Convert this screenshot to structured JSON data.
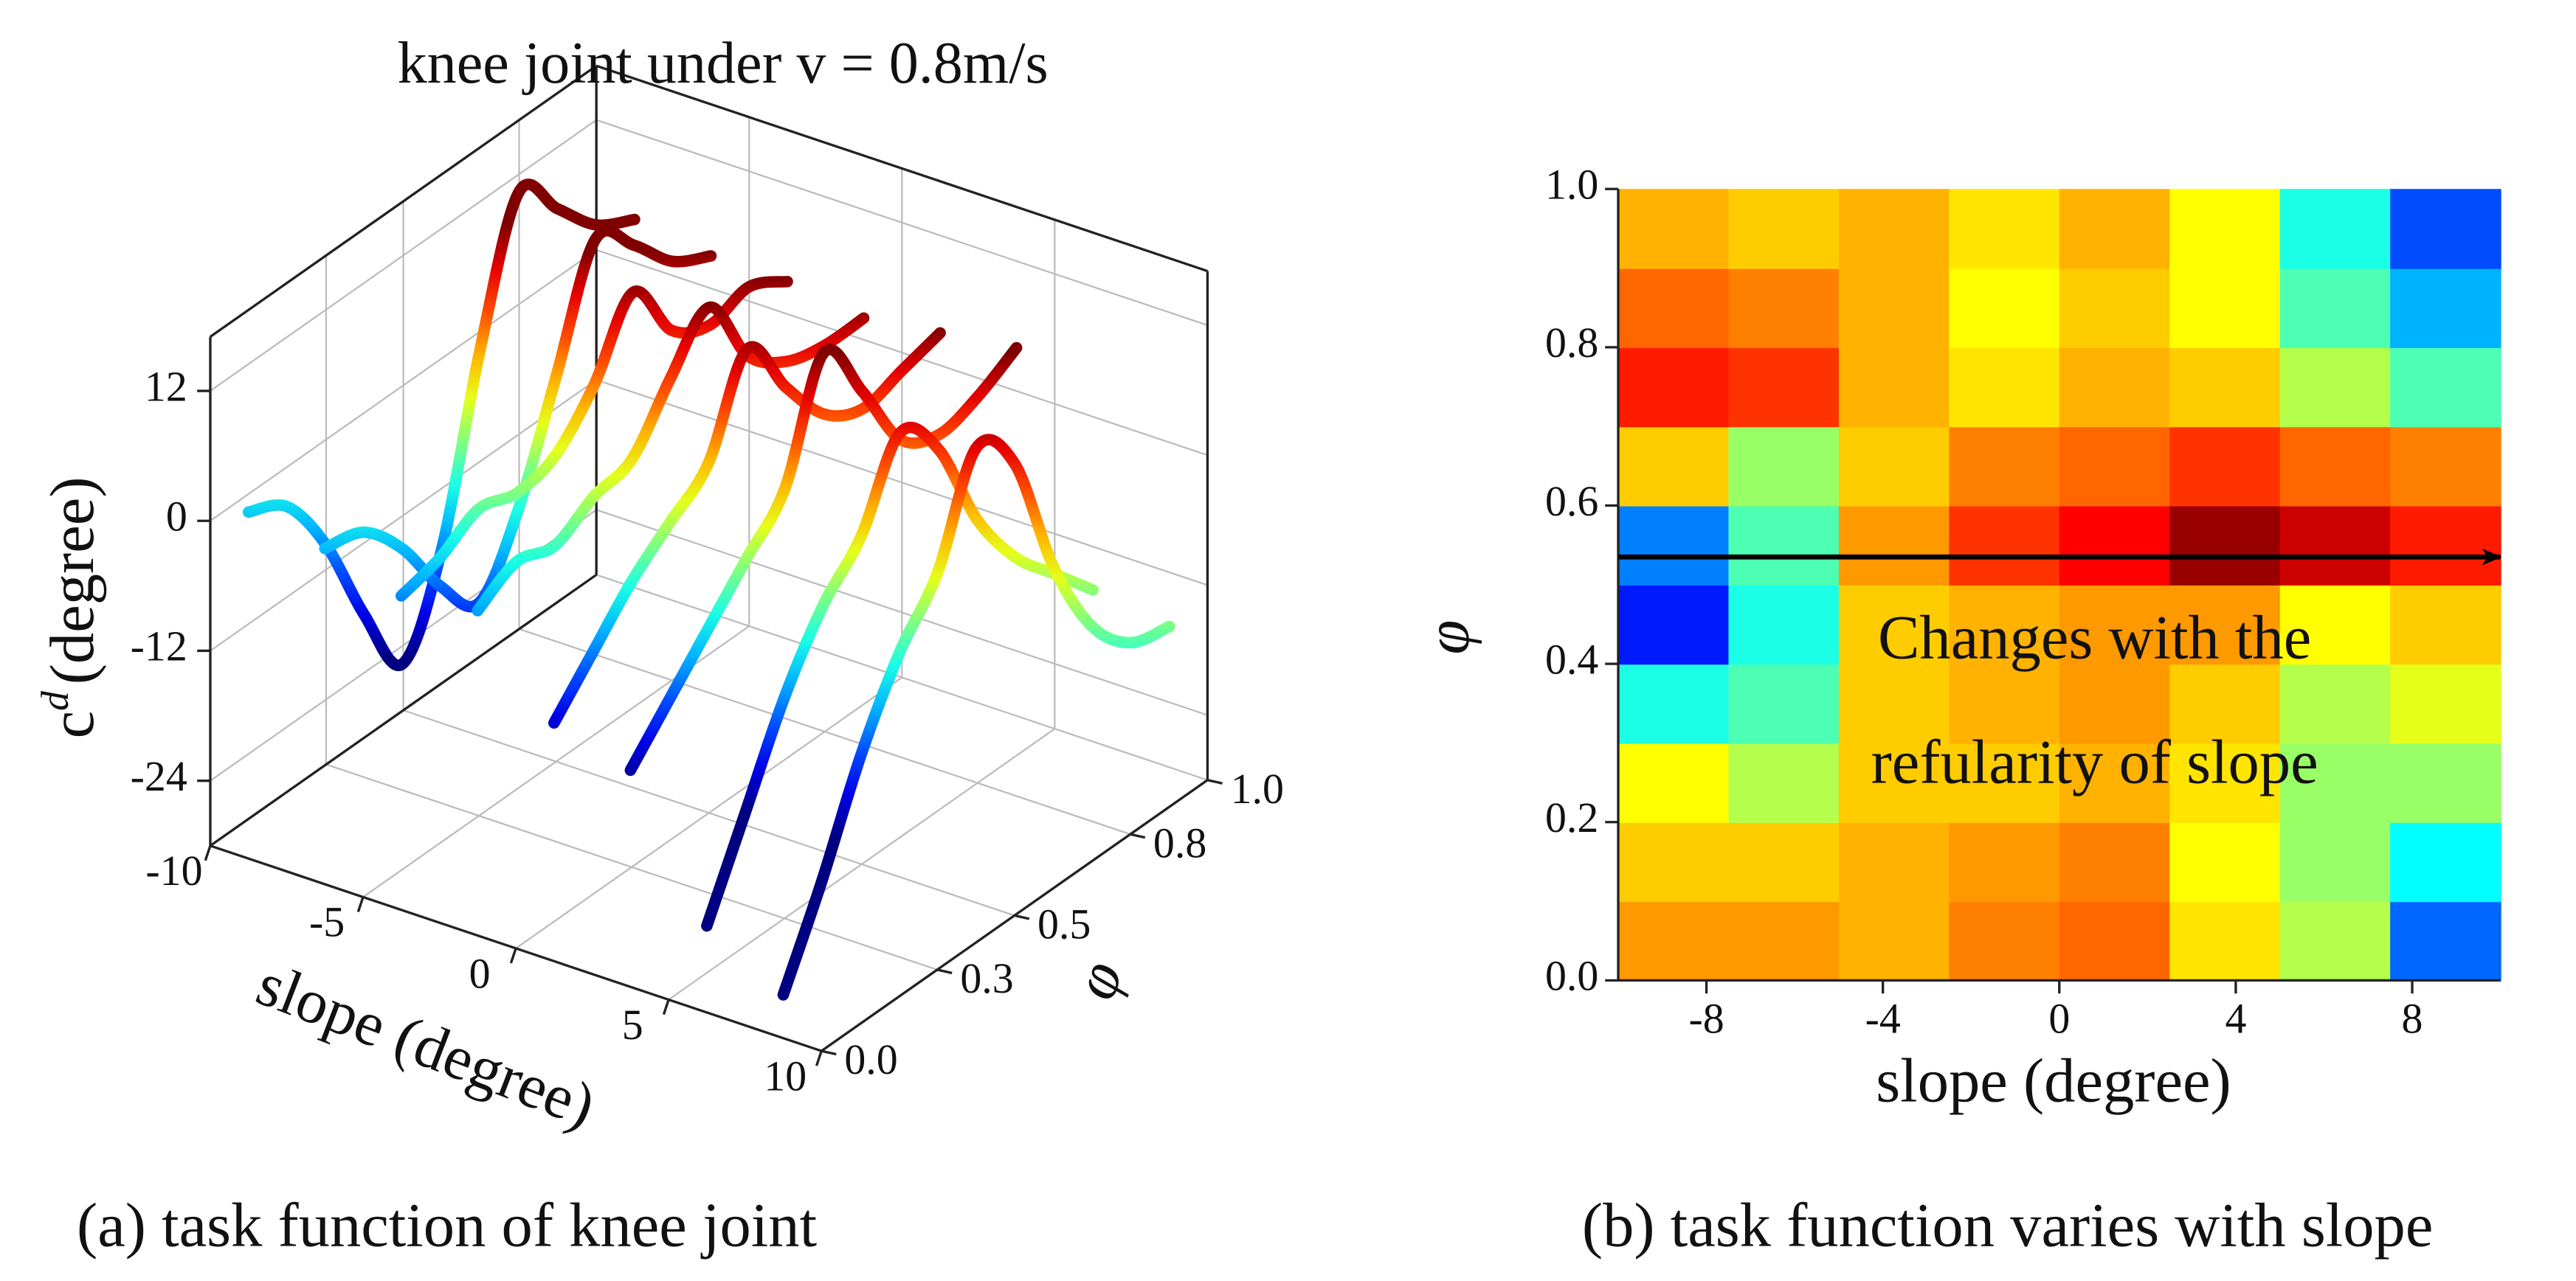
{
  "chart_data": [
    {
      "type": "line3d",
      "title": "knee joint under v = 0.8m/s",
      "caption": "(a) task function of knee joint",
      "xlabel": "slope (degree)",
      "ylabel": "φ",
      "zlabel": {
        "text": "c",
        "superscript": "d",
        "unit": "(degree)"
      },
      "colormap": "jet",
      "clim": [
        -24,
        16
      ],
      "xlim": [
        -10,
        10
      ],
      "xticks": [
        -10,
        -5,
        0,
        5,
        10
      ],
      "ylim": [
        0,
        1
      ],
      "yticks": [
        {
          "value": 0,
          "label": "0.0"
        },
        0.3,
        0.5,
        0.8,
        {
          "value": 1,
          "label": "1.0"
        }
      ],
      "zlim": [
        -30,
        17
      ],
      "zticks": [
        12,
        0,
        -12,
        -24
      ],
      "grid": true,
      "x": [
        0,
        0.1,
        0.2,
        0.3,
        0.4,
        0.5,
        0.6,
        0.7,
        0.8,
        0.9,
        1.0
      ],
      "series": [
        {
          "slope": -8.75,
          "values": [
            2,
            0,
            -6,
            -15,
            -22,
            -14,
            2,
            14,
            10,
            6,
            4
          ]
        },
        {
          "slope": -6.25,
          "values": [
            1,
            0,
            -4,
            -10,
            -14,
            -8,
            2,
            12,
            9,
            5,
            3
          ]
        },
        {
          "slope": -3.75,
          "values": [
            -1,
            0,
            2,
            1,
            2,
            6,
            12,
            6,
            4,
            5,
            3
          ]
        },
        {
          "slope": -1.25,
          "values": [
            0,
            2,
            1,
            3,
            4,
            9,
            13,
            6,
            3,
            2,
            2
          ]
        },
        {
          "slope": 1.25,
          "values": [
            -8,
            -4,
            0,
            3,
            6,
            14,
            8,
            3,
            1,
            2,
            3
          ]
        },
        {
          "slope": 3.75,
          "values": [
            -10,
            -6,
            -2,
            2,
            6,
            16,
            10,
            3,
            1,
            2,
            4
          ]
        },
        {
          "slope": 6.25,
          "values": [
            -22,
            -14,
            -6,
            0,
            4,
            11,
            7,
            -2,
            -8,
            -12,
            -16
          ]
        },
        {
          "slope": 8.75,
          "values": [
            -26,
            -18,
            -9,
            -2,
            3,
            12,
            8,
            -4,
            -12,
            -16,
            -17
          ]
        }
      ]
    },
    {
      "type": "heatmap",
      "caption": "(b) task function varies with slope",
      "xlabel": "slope (degree)",
      "ylabel": "φ",
      "annotation": [
        "Changes with the",
        "refularity of slope"
      ],
      "arrow": {
        "y": 0.535
      },
      "colormap": "jet",
      "clim": [
        -24,
        16
      ],
      "xlim": [
        -10,
        10
      ],
      "xticks": [
        -8,
        -4,
        0,
        4,
        8
      ],
      "ylim": [
        0,
        1
      ],
      "yticks": [
        {
          "value": 0,
          "label": "0.0"
        },
        0.2,
        0.4,
        0.6,
        0.8,
        {
          "value": 1,
          "label": "1.0"
        }
      ],
      "xbins": [
        -10,
        -7.5,
        -5,
        -2.5,
        0,
        2.5,
        5,
        7.5,
        10
      ],
      "ybins": [
        0,
        0.1,
        0.2,
        0.3,
        0.4,
        0.5,
        0.6,
        0.7,
        0.8,
        0.9,
        1.0
      ],
      "values": [
        [
          5,
          3,
          1,
          -8,
          -18,
          -14,
          3,
          10,
          7,
          4
        ],
        [
          5,
          3,
          -2,
          -6,
          -8,
          -6,
          -3,
          9,
          6,
          3
        ],
        [
          4,
          4,
          3,
          3,
          3,
          5,
          3,
          4,
          4,
          4
        ],
        [
          6,
          5,
          3,
          4,
          4,
          9,
          6,
          2,
          1,
          2
        ],
        [
          7,
          6,
          4,
          5,
          5,
          11,
          7,
          4,
          3,
          4
        ],
        [
          2,
          1,
          2,
          3,
          5,
          15,
          9,
          3,
          1,
          1
        ],
        [
          -2,
          -3,
          -3,
          -2,
          1,
          13,
          7,
          -2,
          -6,
          -8
        ],
        [
          -15,
          -9,
          -3,
          0,
          3,
          10,
          6,
          -6,
          -12,
          -16
        ]
      ]
    }
  ]
}
